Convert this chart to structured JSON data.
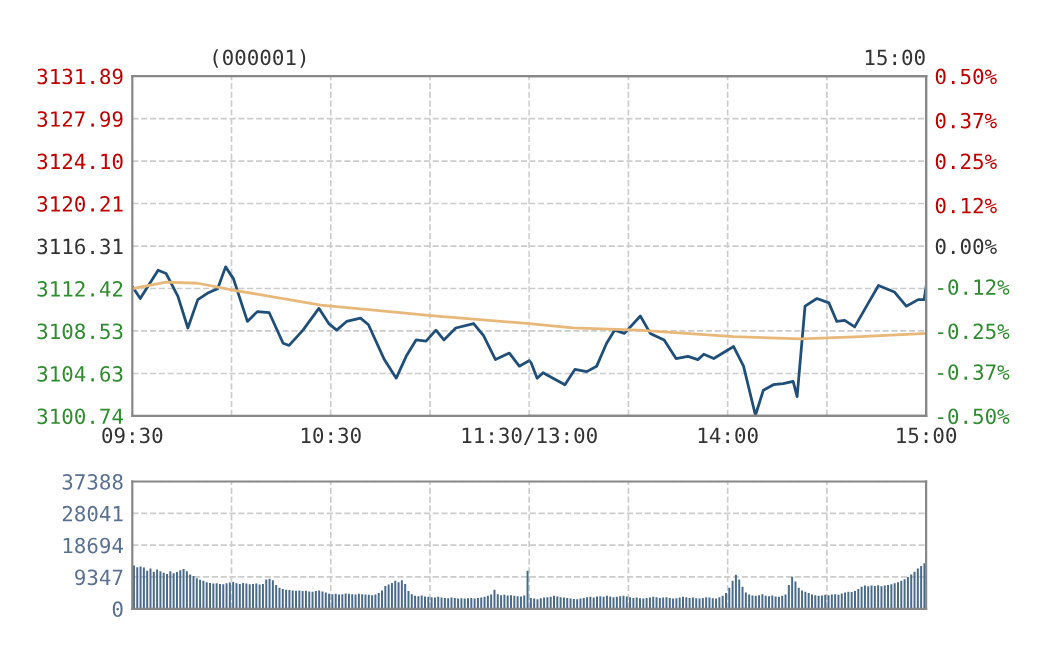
{
  "chart_data": [
    {
      "type": "line",
      "title": "(000001)",
      "grid": true,
      "marker": "none",
      "line_style": "solid",
      "xlim": [
        9.5,
        11.5
      ],
      "xticks": [
        {
          "value": 9.5,
          "label": "09:30"
        },
        {
          "value": 10,
          "label": null
        },
        {
          "value": 10.5,
          "label": "10:30"
        },
        {
          "value": 11,
          "label": null
        },
        {
          "value": 11.5,
          "label": "11:30/13:00"
        }
      ],
      "ylim": [
        3100.74,
        3131.89
      ],
      "yticks": [
        3100.74,
        3104.63,
        3108.53,
        3112.42,
        3116.31,
        3120.21,
        {
          "value": 3124.1,
          "label": "3124.10"
        },
        3127.99,
        3131.89
      ],
      "series": [
        {
          "color": "#1f4e79",
          "x": [
            9.5,
            9.54,
            9.63,
            9.67,
            9.73,
            9.78,
            9.83,
            9.88,
            9.93,
            9.97,
            10.01,
            10.08,
            10.13,
            10.19,
            10.26,
            10.29,
            10.36,
            10.44,
            10.49,
            10.53,
            10.58,
            10.65,
            10.69,
            10.77,
            10.83,
            10.88,
            10.93,
            10.98,
            11.03,
            11.07,
            11.13,
            11.22,
            11.27,
            11.33,
            11.4,
            11.45,
            11.5
          ],
          "values": [
            3112.6,
            3111.5,
            3114.1,
            3113.8,
            3111.7,
            3108.8,
            3111.4,
            3112.0,
            3112.4,
            3114.4,
            3113.3,
            3109.4,
            3110.3,
            3110.2,
            3107.4,
            3107.2,
            3108.6,
            3110.6,
            3109.2,
            3108.6,
            3109.4,
            3109.7,
            3109.1,
            3105.9,
            3104.2,
            3106.2,
            3107.7,
            3107.6,
            3108.6,
            3107.7,
            3108.8,
            3109.2,
            3108.1,
            3105.9,
            3106.5,
            3105.3,
            3105.8
          ]
        },
        {
          "color": "#e8b87a",
          "x": [
            9.5,
            9.67,
            9.83,
            10,
            10.45,
            11.02,
            11.5
          ],
          "values": [
            3112.4,
            3113.0,
            3112.9,
            3112.3,
            3110.9,
            3109.9,
            3109.2
          ]
        }
      ]
    },
    {
      "type": "line",
      "annotations": [
        "15:00"
      ],
      "grid": true,
      "marker": "none",
      "line_style": "solid",
      "tick_labels": "x",
      "xlim": [
        13,
        15
      ],
      "xticks": [
        {
          "value": 13,
          "label": null
        },
        {
          "value": 13.5,
          "label": null
        },
        {
          "value": 14,
          "label": "14:00"
        },
        {
          "value": 14.5,
          "label": null
        },
        {
          "value": 15,
          "label": "15:00"
        }
      ],
      "ylim": [
        3100.74,
        3131.89
      ],
      "yticks": [
        3100.74,
        3104.63,
        3108.53,
        3112.42,
        3116.31,
        3120.21,
        3124.1,
        3127.99,
        3131.89
      ],
      "y2lim": [
        -0.5,
        0.5
      ],
      "y2ticks": [
        {
          "value": -0.5,
          "label": "-0.50%"
        },
        {
          "value": -0.37,
          "label": "-0.37%"
        },
        {
          "value": -0.25,
          "label": "-0.25%"
        },
        {
          "value": -0.12,
          "label": "-0.12%"
        },
        {
          "value": 0,
          "label": "0.00%"
        },
        {
          "value": 0.12,
          "label": "0.12%"
        },
        {
          "value": 0.25,
          "label": "0.25%"
        },
        {
          "value": 0.37,
          "label": "0.37%"
        },
        {
          "value": 0.5,
          "label": "0.50%"
        }
      ],
      "series": [
        {
          "color": "#1f4e79",
          "x": [
            13,
            13.01,
            13.04,
            13.07,
            13.12,
            13.18,
            13.23,
            13.29,
            13.34,
            13.39,
            13.43,
            13.48,
            13.56,
            13.61,
            13.68,
            13.74,
            13.8,
            13.85,
            13.88,
            13.93,
            14.03,
            14.08,
            14.14,
            14.18,
            14.23,
            14.28,
            14.33,
            14.35,
            14.39,
            14.45,
            14.51,
            14.55,
            14.59,
            14.64,
            14.7,
            14.76,
            14.84,
            14.9,
            14.96,
            14.99,
            15
          ],
          "values": [
            3105.8,
            3105.6,
            3104.2,
            3104.7,
            3104.2,
            3103.6,
            3105.0,
            3104.8,
            3105.3,
            3107.4,
            3108.6,
            3108.3,
            3109.9,
            3108.3,
            3107.7,
            3106.0,
            3106.2,
            3105.9,
            3106.4,
            3106.0,
            3107.1,
            3105.3,
            3100.8,
            3103.1,
            3103.6,
            3103.7,
            3103.9,
            3102.5,
            3110.8,
            3111.5,
            3111.1,
            3109.4,
            3109.5,
            3108.9,
            3110.8,
            3112.7,
            3112.1,
            3110.8,
            3111.4,
            3111.4,
            3112.6
          ]
        },
        {
          "color": "#e8b87a",
          "x": [
            13,
            13.22,
            13.55,
            14.03,
            14.37,
            14.67,
            15
          ],
          "values": [
            3109.2,
            3108.8,
            3108.6,
            3108.0,
            3107.8,
            3108.0,
            3108.3
          ]
        }
      ]
    },
    {
      "type": "bar",
      "grid": true,
      "tick_labels": "y",
      "categories": [
        null,
        null,
        null,
        null,
        null,
        null,
        null,
        null,
        null,
        null,
        null,
        null,
        null,
        null,
        null,
        null,
        null,
        null,
        null,
        null,
        null,
        null,
        null,
        null,
        null,
        null,
        null,
        null,
        null,
        null,
        null,
        null,
        null,
        null,
        null,
        null,
        null,
        null,
        null,
        null,
        null,
        null,
        null,
        null,
        null,
        null,
        null,
        null,
        null,
        null,
        null,
        null,
        null,
        null,
        null,
        null,
        null,
        null,
        null,
        null,
        null,
        null,
        null,
        null,
        null,
        null,
        null,
        null,
        null,
        null,
        null,
        null,
        null,
        null,
        null,
        null,
        null,
        null,
        null,
        null,
        null,
        null,
        null,
        null,
        null,
        null,
        null,
        null,
        null,
        null,
        null,
        null,
        null,
        null,
        null,
        null,
        null,
        null,
        null,
        null,
        null,
        null,
        null,
        null,
        null,
        null,
        null,
        null,
        null,
        null,
        null,
        null,
        null,
        null,
        null,
        null,
        null,
        null,
        null,
        null,
        null,
        null,
        null,
        null,
        null,
        null,
        null,
        null,
        null,
        null,
        null,
        null,
        null,
        null,
        null,
        null,
        null,
        null,
        null,
        null,
        null,
        null,
        null,
        null,
        null,
        null,
        null,
        null,
        null,
        null,
        null,
        null,
        null,
        null,
        null,
        null,
        null,
        null,
        null,
        null,
        null,
        null,
        null,
        null,
        null,
        null,
        null,
        null,
        null,
        null,
        null,
        null,
        null,
        null,
        null,
        null,
        null,
        null,
        null,
        null,
        null,
        null,
        null,
        null,
        null,
        null,
        null,
        null,
        null,
        null,
        null,
        null,
        null,
        null,
        null,
        null,
        null,
        null,
        null,
        null,
        null,
        null,
        null,
        null,
        null,
        null,
        null,
        null,
        null,
        null,
        null,
        null,
        null,
        null,
        null,
        null,
        null,
        null,
        null,
        null,
        null,
        null,
        null,
        null,
        null,
        null,
        null,
        null,
        null,
        null,
        null,
        null,
        null,
        null,
        null,
        null,
        null,
        null,
        null,
        null
      ],
      "ylim": [
        0,
        37388
      ],
      "yticks": [
        0,
        9347,
        18694,
        28041,
        37388
      ],
      "series": [
        {
          "color": "#4a6a8a",
          "values": [
            12700,
            12200,
            12400,
            12100,
            11200,
            11800,
            10900,
            11500,
            11000,
            10600,
            10200,
            11000,
            10400,
            10800,
            11300,
            11700,
            11000,
            10100,
            9600,
            9000,
            8500,
            8200,
            7800,
            7600,
            7400,
            7500,
            7300,
            7200,
            7500,
            7700,
            7900,
            7500,
            7300,
            7600,
            7400,
            7200,
            7300,
            7400,
            7100,
            7300,
            8600,
            8800,
            8400,
            7000,
            6200,
            5800,
            5600,
            5500,
            5400,
            5300,
            5400,
            5200,
            5300,
            5100,
            5000,
            5200,
            5400,
            5100,
            4800,
            4400,
            4300,
            4400,
            4200,
            4300,
            4500,
            4400,
            4300,
            4200,
            4400,
            4300,
            4200,
            4100,
            4000,
            4200,
            4600,
            5400,
            6700,
            7100,
            7600,
            8200,
            7800,
            8400,
            7300,
            5200,
            4300,
            3800,
            3700,
            3900,
            3600,
            3500,
            3400,
            3300,
            3500,
            3300,
            3200,
            3100,
            3300,
            3200,
            3000,
            3100,
            3000,
            3100,
            3200,
            3000,
            3200,
            3300,
            3500,
            3800,
            4200,
            5600,
            4300,
            4000,
            4100,
            3900,
            4000,
            3800,
            3700,
            3600,
            3900,
            11200,
            3200,
            3000,
            2800,
            3100,
            3300,
            3400,
            3500,
            3800,
            3600,
            3400,
            3300,
            3200,
            3000,
            2900,
            2800,
            3000,
            3200,
            3400,
            3500,
            3300,
            3600,
            3700,
            3500,
            3800,
            3600,
            3400,
            3500,
            3700,
            3800,
            3600,
            3400,
            3200,
            3300,
            3100,
            3000,
            3200,
            3300,
            3500,
            3400,
            3200,
            3300,
            3400,
            3200,
            3000,
            3100,
            3300,
            3500,
            3400,
            3200,
            3300,
            3100,
            3000,
            3200,
            3400,
            3300,
            3100,
            3000,
            3400,
            3800,
            4600,
            6200,
            8200,
            10000,
            8600,
            6500,
            4800,
            4200,
            3900,
            3800,
            4000,
            4300,
            3800,
            3700,
            3900,
            3600,
            3500,
            3800,
            4200,
            7000,
            9400,
            8000,
            6200,
            5400,
            5000,
            4600,
            4200,
            4000,
            3800,
            3900,
            4100,
            4000,
            4200,
            4300,
            4100,
            4500,
            4800,
            5000,
            4900,
            5200,
            5800,
            6500,
            6800,
            6600,
            6800,
            6700,
            6900,
            6600,
            6800,
            7000,
            7200,
            7500,
            7800,
            8200,
            8700,
            9300,
            10100,
            10900,
            11800,
            12600,
            13400
          ]
        }
      ]
    }
  ]
}
